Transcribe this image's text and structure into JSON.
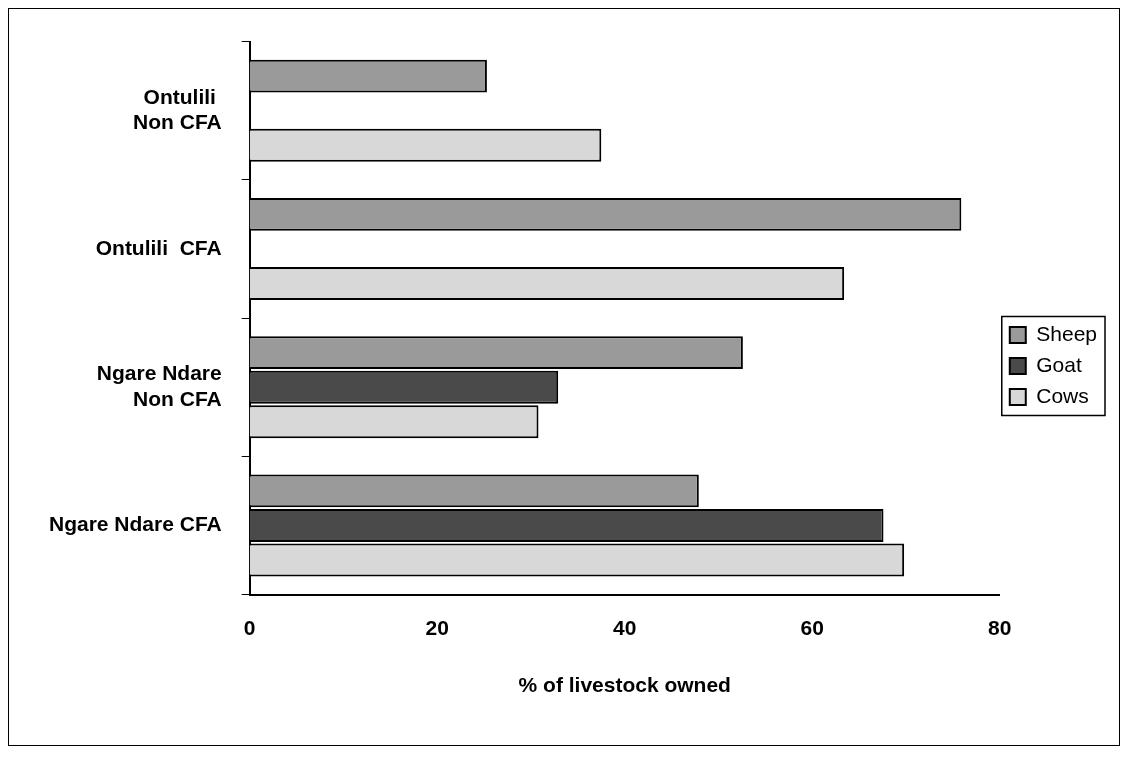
{
  "chart_data": {
    "type": "bar",
    "orientation": "horizontal",
    "xlabel": "% of livestock owned",
    "categories": [
      "Ontulili  Non CFA",
      "Ontulili  CFA",
      "Ngare Ndare Non CFA",
      "Ngare Ndare CFA"
    ],
    "series": [
      {
        "name": "Sheep",
        "color": "#9a9a9a",
        "values": [
          25.3,
          75.9,
          52.6,
          47.9
        ]
      },
      {
        "name": "Goat",
        "color": "#4a4a4a",
        "values": [
          null,
          null,
          32.9,
          67.6
        ]
      },
      {
        "name": "Cows",
        "color": "#d8d8d8",
        "values": [
          37.5,
          63.4,
          30.8,
          69.8
        ]
      }
    ],
    "xlim": [
      0,
      80
    ],
    "xticks": [
      0,
      20,
      40,
      60,
      80
    ],
    "grid": false,
    "legend": "right"
  }
}
